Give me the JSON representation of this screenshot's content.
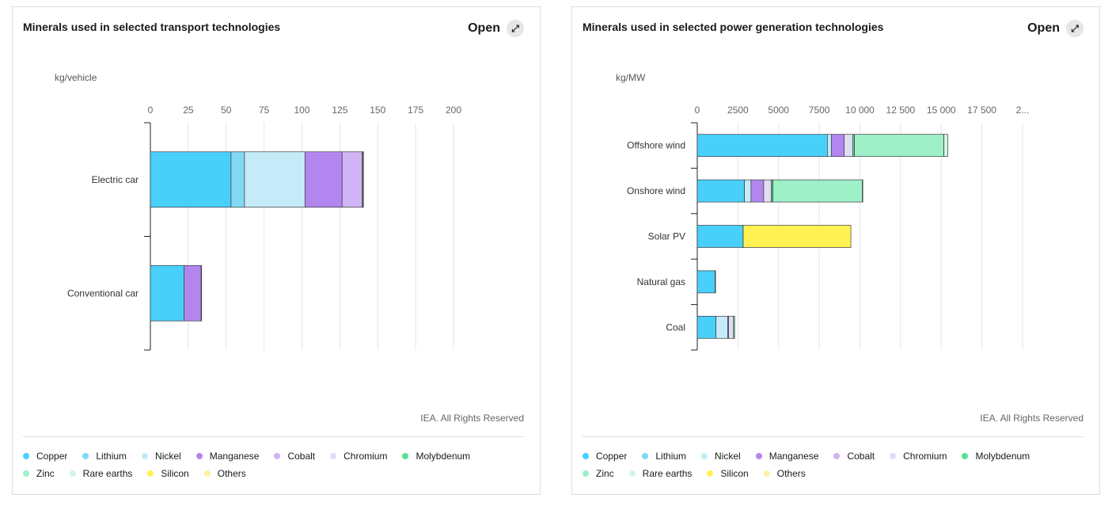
{
  "colors": {
    "Copper": "#49d0fa",
    "Lithium": "#82d7f5",
    "Nickel": "#c4ebf7",
    "Manganese": "#b286ef",
    "Cobalt": "#d0b4f5",
    "Chromium": "#e2dcf5",
    "Molybdenum": "#55e292",
    "Zinc": "#9ef0c9",
    "Rare earths": "#d2f6e2",
    "Silicon": "#fff252",
    "Others": "#fdf1a2"
  },
  "legend": [
    "Copper",
    "Lithium",
    "Nickel",
    "Manganese",
    "Cobalt",
    "Chromium",
    "Molybdenum",
    "Zinc",
    "Rare earths",
    "Silicon",
    "Others"
  ],
  "open_label": "Open",
  "credit": "IEA. All Rights Reserved",
  "charts": [
    {
      "title": "Minerals used in selected transport technologies",
      "unit": "kg/vehicle",
      "chart_data": {
        "type": "bar",
        "orientation": "horizontal",
        "stacked": true,
        "xlim": [
          0,
          200
        ],
        "ticks": [
          "0",
          "25",
          "50",
          "75",
          "100",
          "125",
          "150",
          "175",
          "200"
        ],
        "categories": [
          "Electric car",
          "Conventional car"
        ],
        "series": [
          {
            "name": "Copper",
            "values": [
              53.2,
              22.3
            ]
          },
          {
            "name": "Lithium",
            "values": [
              8.9,
              0
            ]
          },
          {
            "name": "Nickel",
            "values": [
              39.9,
              0
            ]
          },
          {
            "name": "Manganese",
            "values": [
              24.5,
              11.2
            ]
          },
          {
            "name": "Cobalt",
            "values": [
              13.3,
              0
            ]
          },
          {
            "name": "Chromium",
            "values": [
              0,
              0
            ]
          },
          {
            "name": "Molybdenum",
            "values": [
              0,
              0
            ]
          },
          {
            "name": "Zinc",
            "values": [
              0,
              0
            ]
          },
          {
            "name": "Rare earths",
            "values": [
              0.5,
              0
            ]
          },
          {
            "name": "Silicon",
            "values": [
              0,
              0
            ]
          },
          {
            "name": "Others",
            "values": [
              0.3,
              0.3
            ]
          }
        ]
      }
    },
    {
      "title": "Minerals used in selected power generation technologies",
      "unit": "kg/MW",
      "chart_data": {
        "type": "bar",
        "orientation": "horizontal",
        "stacked": true,
        "xlim": [
          0,
          20000
        ],
        "ticks": [
          "0",
          "2500",
          "5000",
          "7500",
          "10 000",
          "12 500",
          "15 000",
          "17 500",
          "2..."
        ],
        "categories": [
          "Offshore wind",
          "Onshore wind",
          "Solar PV",
          "Natural gas",
          "Coal"
        ],
        "series": [
          {
            "name": "Copper",
            "values": [
              8000,
              2900,
              2822,
              1100,
              1150
            ]
          },
          {
            "name": "Lithium",
            "values": [
              0,
              0,
              0,
              0,
              0
            ]
          },
          {
            "name": "Nickel",
            "values": [
              240,
              404,
              1.3,
              16,
              721
            ]
          },
          {
            "name": "Manganese",
            "values": [
              790,
              780,
              0,
              0,
              50
            ]
          },
          {
            "name": "Cobalt",
            "values": [
              0,
              0,
              0,
              0,
              0
            ]
          },
          {
            "name": "Chromium",
            "values": [
              525,
              470,
              0,
              0,
              308
            ]
          },
          {
            "name": "Molybdenum",
            "values": [
              109,
              99,
              0,
              0,
              66
            ]
          },
          {
            "name": "Zinc",
            "values": [
              5500,
              5500,
              0,
              0,
              0
            ]
          },
          {
            "name": "Rare earths",
            "values": [
              239,
              14,
              0,
              0,
              0
            ]
          },
          {
            "name": "Silicon",
            "values": [
              0,
              0,
              6620,
              0,
              0
            ]
          },
          {
            "name": "Others",
            "values": [
              0,
              0,
              0,
              0,
              0
            ]
          }
        ]
      }
    }
  ]
}
